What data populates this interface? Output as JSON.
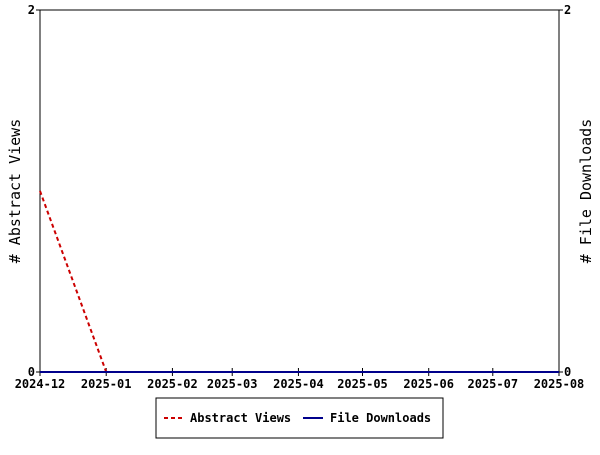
{
  "chart_data": {
    "type": "line",
    "x_type": "date",
    "x": [
      "2024-12",
      "2025-01",
      "2025-02",
      "2025-03",
      "2025-04",
      "2025-05",
      "2025-06",
      "2025-07",
      "2025-08"
    ],
    "xlim": [
      "2024-12",
      "2025-08"
    ],
    "y_left_label": "# Abstract Views",
    "y_right_label": "# File Downloads",
    "ylim_left": [
      0,
      2
    ],
    "ylim_right": [
      0,
      2
    ],
    "y_left_ticks": [
      "0",
      "2"
    ],
    "y_right_ticks": [
      "0",
      "2"
    ],
    "grid": false,
    "legend_position": "bottom-center",
    "series": [
      {
        "name": "Abstract Views",
        "axis": "left",
        "color": "#cc0000",
        "dash": "dashed",
        "points": [
          {
            "x": "2024-12",
            "y": 1
          },
          {
            "x": "2025-01",
            "y": 0
          }
        ]
      },
      {
        "name": "File Downloads",
        "axis": "right",
        "color": "#00008b",
        "dash": "solid",
        "points": [
          {
            "x": "2024-12",
            "y": 0
          },
          {
            "x": "2025-01",
            "y": 0
          },
          {
            "x": "2025-02",
            "y": 0
          },
          {
            "x": "2025-03",
            "y": 0
          },
          {
            "x": "2025-04",
            "y": 0
          },
          {
            "x": "2025-05",
            "y": 0
          },
          {
            "x": "2025-06",
            "y": 0
          },
          {
            "x": "2025-07",
            "y": 0
          },
          {
            "x": "2025-08",
            "y": 0
          }
        ]
      }
    ]
  }
}
